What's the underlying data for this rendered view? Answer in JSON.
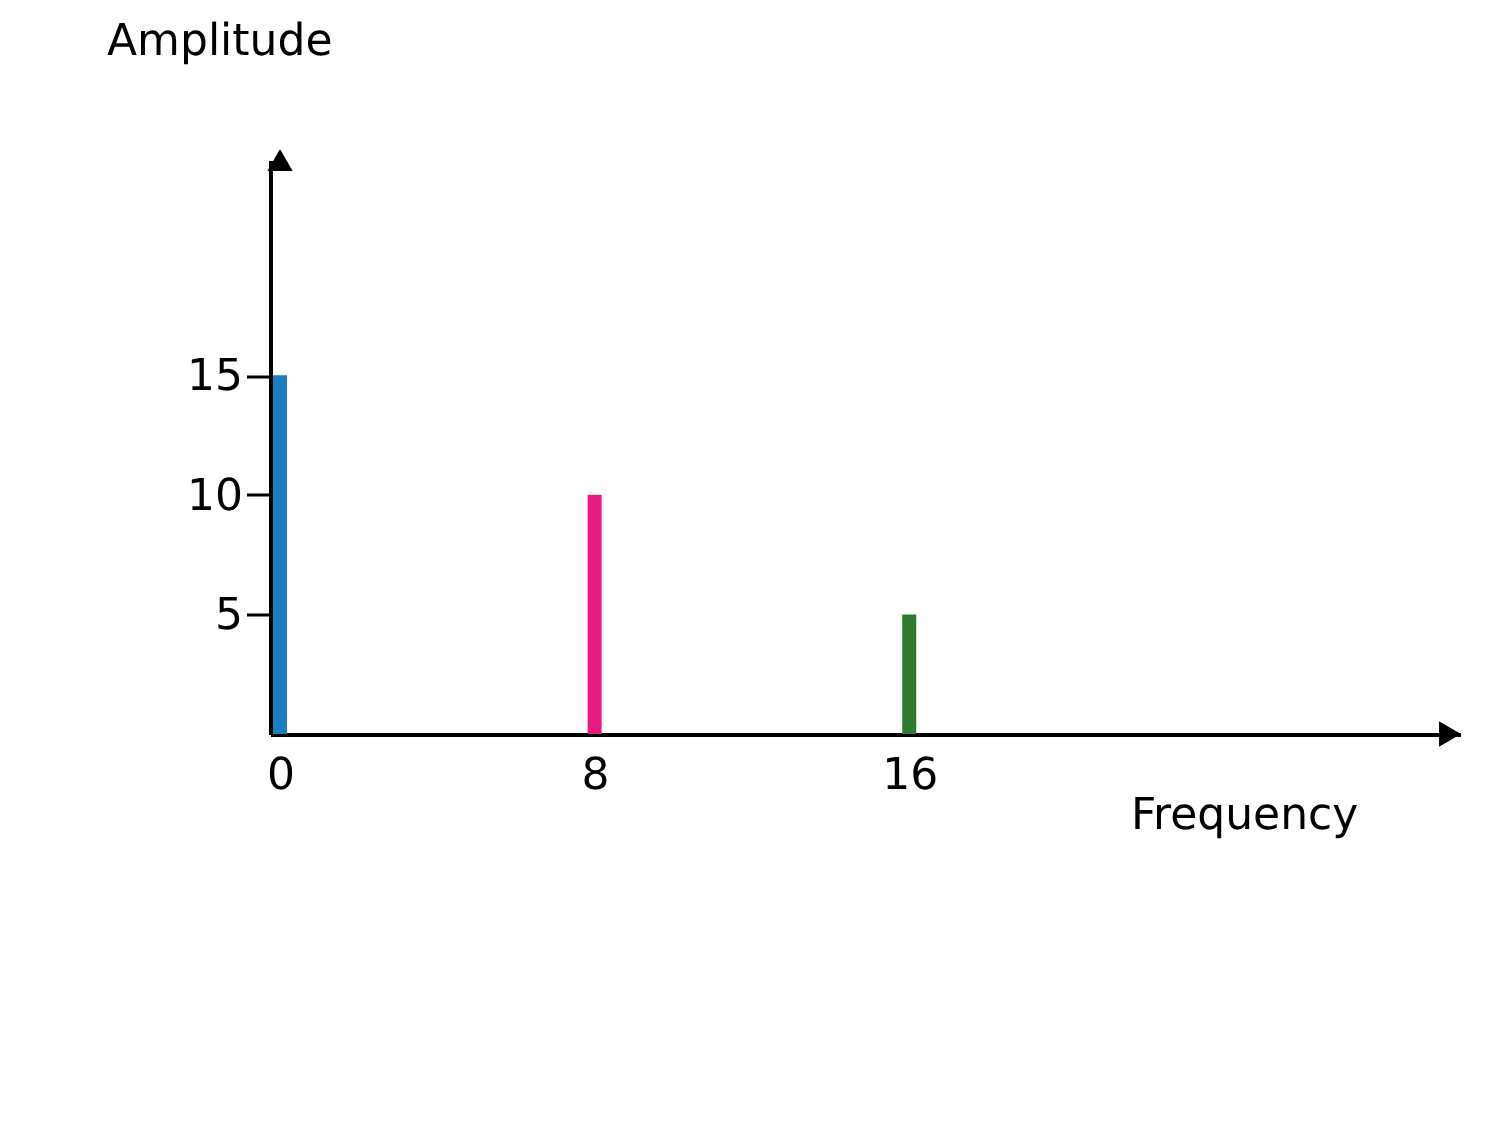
{
  "chart_data": {
    "type": "bar",
    "xlabel": "Frequency",
    "ylabel": "Amplitude",
    "x": [
      0,
      8,
      16
    ],
    "values": [
      15,
      10,
      5
    ],
    "colors": [
      "#1b7cc0",
      "#e8197f",
      "#2e7a2e"
    ],
    "xlim": [
      0,
      29.75
    ],
    "ylim": [
      0,
      24
    ],
    "xticks": [
      0,
      8,
      16
    ],
    "yticks": [
      5,
      10,
      15
    ]
  }
}
